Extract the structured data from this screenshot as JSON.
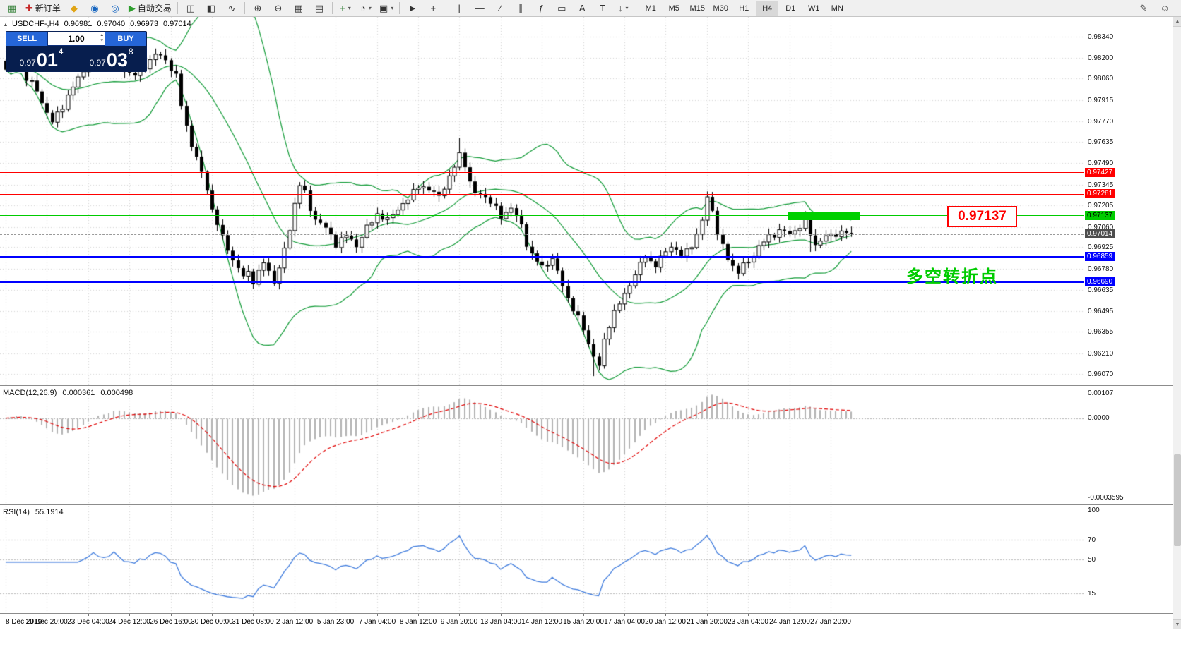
{
  "glyphs": {
    "collapse": "▴",
    "dropdown": "▾",
    "volume_up": "▴",
    "volume_down": "▾",
    "scroll_up": "▲",
    "scroll_down": "▼"
  },
  "toolbar": {
    "groups": [
      {
        "items": [
          {
            "name": "new-chart-icon",
            "glyph": "▦",
            "color": "#2e7d32"
          },
          {
            "name": "new-order-button",
            "label": "新订单",
            "icon": "✚",
            "icon_color": "#c62828"
          },
          {
            "name": "megaphone-icon",
            "glyph": "◆",
            "color": "#e0a415"
          },
          {
            "name": "market-icon",
            "glyph": "◉",
            "color": "#1565c0"
          },
          {
            "name": "signals-icon",
            "glyph": "◎",
            "color": "#1565c0"
          },
          {
            "name": "autotrading-button",
            "label": "自动交易",
            "icon": "▶",
            "icon_color": "#2e9e2e"
          }
        ]
      },
      {
        "items": [
          {
            "name": "bar-chart-icon",
            "glyph": "◫"
          },
          {
            "name": "candlestick-chart-icon",
            "glyph": "◧"
          },
          {
            "name": "line-chart-icon",
            "glyph": "∿"
          }
        ]
      },
      {
        "items": [
          {
            "name": "zoom-in-icon",
            "glyph": "⊕"
          },
          {
            "name": "zoom-out-icon",
            "glyph": "⊖"
          },
          {
            "name": "tile-windows-icon",
            "glyph": "▦"
          },
          {
            "name": "auto-arrange-icon",
            "glyph": "▤"
          }
        ]
      },
      {
        "items": [
          {
            "name": "indicators-icon",
            "glyph": "+",
            "color": "#2e7d32",
            "dropdown": true
          },
          {
            "name": "periods-icon",
            "glyph": "◔",
            "dropdown": true
          },
          {
            "name": "templates-icon",
            "glyph": "▣",
            "dropdown": true
          }
        ]
      },
      {
        "items": [
          {
            "name": "cursor-icon",
            "glyph": "►"
          },
          {
            "name": "crosshair-icon",
            "glyph": "+"
          }
        ]
      },
      {
        "items": [
          {
            "name": "vertical-line-icon",
            "glyph": "|"
          },
          {
            "name": "horizontal-line-icon",
            "glyph": "—"
          },
          {
            "name": "trendline-icon",
            "glyph": "∕"
          },
          {
            "name": "channel-icon",
            "glyph": "∥"
          },
          {
            "name": "fibonacci-icon",
            "glyph": "ƒ"
          },
          {
            "name": "shapes-icon",
            "glyph": "▭"
          },
          {
            "name": "text-icon",
            "glyph": "A"
          },
          {
            "name": "label-icon",
            "glyph": "T"
          },
          {
            "name": "arrows-icon",
            "glyph": "↓",
            "dropdown": true
          }
        ]
      }
    ],
    "timeframes": [
      "M1",
      "M5",
      "M15",
      "M30",
      "H1",
      "H4",
      "D1",
      "W1",
      "MN"
    ],
    "active_timeframe": "H4",
    "right_icons": [
      {
        "name": "pencil-icon",
        "glyph": "✎"
      },
      {
        "name": "smiley-icon",
        "glyph": "☺"
      }
    ]
  },
  "quote_header": {
    "symbol": "USDCHF-,H4",
    "open": "0.96981",
    "high": "0.97040",
    "low": "0.96973",
    "close": "0.97014"
  },
  "trade_panel": {
    "sell_label": "SELL",
    "buy_label": "BUY",
    "volume": "1.00",
    "sell_price_prefix": "0.97",
    "sell_price_big": "01",
    "sell_price_sup": "4",
    "buy_price_prefix": "0.97",
    "buy_price_big": "03",
    "buy_price_sup": "8"
  },
  "levels": [
    {
      "value": 0.97427,
      "label": "0.97427",
      "color": "#ff0000",
      "text_color": "#ffffff",
      "thickness": 1
    },
    {
      "value": 0.97281,
      "label": "0.97281",
      "color": "#ff0000",
      "text_color": "#ffffff",
      "thickness": 1
    },
    {
      "value": 0.97137,
      "label": "0.97137",
      "color": "#00cc00",
      "text_color": "#000000",
      "thickness": 1
    },
    {
      "value": 0.96859,
      "label": "0.96859",
      "color": "#0000ff",
      "text_color": "#ffffff",
      "thickness": 2
    },
    {
      "value": 0.9669,
      "label": "0.96690",
      "color": "#0000ff",
      "text_color": "#ffffff",
      "thickness": 2
    }
  ],
  "current_price": {
    "value": 0.97014,
    "label": "0.97014",
    "bg": "#4d4d4d",
    "text_color": "#ffffff"
  },
  "macd": {
    "title": "MACD(12,26,9)",
    "value_main": "0.000361",
    "value_signal": "0.000498",
    "axis_labels": [
      "0.00107",
      "0.0000",
      "-0.0003595"
    ],
    "histogram_color": "#b2b2b2",
    "signal_color": "#e00000"
  },
  "rsi": {
    "title": "RSI(14)",
    "value": "55.1914",
    "axis_labels": [
      {
        "value": 100,
        "label": "100"
      },
      {
        "value": 70,
        "label": "70"
      },
      {
        "value": 50,
        "label": "50"
      },
      {
        "value": 15,
        "label": "15"
      }
    ],
    "line_color": "#3e7bdd"
  },
  "annotations": {
    "highlight_bar": {
      "price": 0.97137,
      "from_index": 152,
      "to_index": 166,
      "color": "#00d000"
    },
    "price_callout": {
      "text": "0.97137",
      "color": "#ff0000"
    },
    "cn_label": {
      "text": "多空转折点",
      "color": "#00cc00"
    }
  },
  "chart_data": {
    "type": "candlestick",
    "symbol": "USDCHF",
    "timeframe": "H4",
    "n_candles": 165,
    "style": {
      "bull_fill": "#ffffff",
      "bear_fill": "#000000",
      "outline": "#000000",
      "grid_color": "#d2d2d2",
      "bollinger_color": "#0f9a35"
    },
    "price_axis": {
      "top_price": 0.98475,
      "bottom_price": 0.96,
      "ticks": [
        "0.98340",
        "0.98200",
        "0.98060",
        "0.97915",
        "0.97770",
        "0.97635",
        "0.97490",
        "0.97345",
        "0.97205",
        "0.97060",
        "0.96925",
        "0.96780",
        "0.96635",
        "0.96495",
        "0.96355",
        "0.96210",
        "0.96070"
      ]
    },
    "time_ticks": [
      {
        "index": 0,
        "label": "8 Dec 2019"
      },
      {
        "index": 8,
        "label": "19 Dec 20:00"
      },
      {
        "index": 16,
        "label": "23 Dec 04:00"
      },
      {
        "index": 24,
        "label": "24 Dec 12:00"
      },
      {
        "index": 32,
        "label": "26 Dec 16:00"
      },
      {
        "index": 40,
        "label": "30 Dec 00:00"
      },
      {
        "index": 48,
        "label": "31 Dec 08:00"
      },
      {
        "index": 56,
        "label": "2 Jan 12:00"
      },
      {
        "index": 64,
        "label": "5 Jan 23:00"
      },
      {
        "index": 72,
        "label": "7 Jan 04:00"
      },
      {
        "index": 80,
        "label": "8 Jan 12:00"
      },
      {
        "index": 88,
        "label": "9 Jan 20:00"
      },
      {
        "index": 96,
        "label": "13 Jan 04:00"
      },
      {
        "index": 104,
        "label": "14 Jan 12:00"
      },
      {
        "index": 112,
        "label": "15 Jan 20:00"
      },
      {
        "index": 120,
        "label": "17 Jan 04:00"
      },
      {
        "index": 128,
        "label": "20 Jan 12:00"
      },
      {
        "index": 136,
        "label": "21 Jan 20:00"
      },
      {
        "index": 144,
        "label": "23 Jan 04:00"
      },
      {
        "index": 152,
        "label": "24 Jan 12:00"
      },
      {
        "index": 160,
        "label": "27 Jan 20:00"
      }
    ],
    "close_waypoints": [
      [
        0,
        0.9812
      ],
      [
        2,
        0.982
      ],
      [
        4,
        0.9806
      ],
      [
        6,
        0.9798
      ],
      [
        8,
        0.9783
      ],
      [
        9,
        0.9776
      ],
      [
        11,
        0.9788
      ],
      [
        13,
        0.98
      ],
      [
        15,
        0.9812
      ],
      [
        17,
        0.982
      ],
      [
        19,
        0.9815
      ],
      [
        21,
        0.9822
      ],
      [
        23,
        0.9812
      ],
      [
        25,
        0.9808
      ],
      [
        27,
        0.9815
      ],
      [
        29,
        0.9822
      ],
      [
        31,
        0.9819
      ],
      [
        33,
        0.9807
      ],
      [
        34,
        0.9788
      ],
      [
        35,
        0.9774
      ],
      [
        36,
        0.9762
      ],
      [
        37,
        0.9752
      ],
      [
        38,
        0.9742
      ],
      [
        39,
        0.9732
      ],
      [
        40,
        0.9718
      ],
      [
        41,
        0.9708
      ],
      [
        42,
        0.9698
      ],
      [
        43,
        0.9692
      ],
      [
        44,
        0.9684
      ],
      [
        45,
        0.9678
      ],
      [
        46,
        0.9672
      ],
      [
        47,
        0.9676
      ],
      [
        48,
        0.967
      ],
      [
        49,
        0.9675
      ],
      [
        50,
        0.9682
      ],
      [
        51,
        0.9676
      ],
      [
        52,
        0.967
      ],
      [
        53,
        0.9678
      ],
      [
        54,
        0.969
      ],
      [
        55,
        0.9705
      ],
      [
        56,
        0.9722
      ],
      [
        57,
        0.9735
      ],
      [
        58,
        0.9728
      ],
      [
        59,
        0.9718
      ],
      [
        60,
        0.9712
      ],
      [
        62,
        0.9705
      ],
      [
        64,
        0.9695
      ],
      [
        66,
        0.97
      ],
      [
        68,
        0.9694
      ],
      [
        70,
        0.9705
      ],
      [
        72,
        0.9715
      ],
      [
        74,
        0.971
      ],
      [
        76,
        0.9719
      ],
      [
        78,
        0.9724
      ],
      [
        80,
        0.9735
      ],
      [
        82,
        0.973
      ],
      [
        84,
        0.9728
      ],
      [
        86,
        0.9738
      ],
      [
        88,
        0.9756
      ],
      [
        89,
        0.9748
      ],
      [
        90,
        0.9735
      ],
      [
        91,
        0.9728
      ],
      [
        92,
        0.973
      ],
      [
        94,
        0.9722
      ],
      [
        96,
        0.9714
      ],
      [
        98,
        0.9718
      ],
      [
        100,
        0.9708
      ],
      [
        101,
        0.9695
      ],
      [
        102,
        0.9686
      ],
      [
        104,
        0.968
      ],
      [
        106,
        0.9684
      ],
      [
        107,
        0.9675
      ],
      [
        108,
        0.9668
      ],
      [
        109,
        0.9658
      ],
      [
        110,
        0.965
      ],
      [
        111,
        0.9644
      ],
      [
        112,
        0.9638
      ],
      [
        113,
        0.9628
      ],
      [
        114,
        0.9618
      ],
      [
        115,
        0.9612
      ],
      [
        116,
        0.963
      ],
      [
        117,
        0.9641
      ],
      [
        118,
        0.9648
      ],
      [
        119,
        0.9654
      ],
      [
        120,
        0.9661
      ],
      [
        121,
        0.9668
      ],
      [
        122,
        0.9674
      ],
      [
        123,
        0.968
      ],
      [
        124,
        0.9687
      ],
      [
        125,
        0.9683
      ],
      [
        126,
        0.968
      ],
      [
        127,
        0.9684
      ],
      [
        128,
        0.969
      ],
      [
        129,
        0.9694
      ],
      [
        130,
        0.969
      ],
      [
        131,
        0.9686
      ],
      [
        132,
        0.969
      ],
      [
        133,
        0.9695
      ],
      [
        134,
        0.97
      ],
      [
        135,
        0.971
      ],
      [
        136,
        0.9726
      ],
      [
        137,
        0.9718
      ],
      [
        138,
        0.9702
      ],
      [
        139,
        0.9692
      ],
      [
        140,
        0.9685
      ],
      [
        141,
        0.968
      ],
      [
        142,
        0.9676
      ],
      [
        143,
        0.968
      ],
      [
        144,
        0.9682
      ],
      [
        145,
        0.9688
      ],
      [
        146,
        0.9693
      ],
      [
        148,
        0.9699
      ],
      [
        150,
        0.9704
      ],
      [
        152,
        0.9701
      ],
      [
        154,
        0.9707
      ],
      [
        155,
        0.971
      ],
      [
        156,
        0.9701
      ],
      [
        157,
        0.9694
      ],
      [
        158,
        0.9698
      ],
      [
        160,
        0.97
      ],
      [
        162,
        0.9703
      ],
      [
        164,
        0.97014
      ]
    ],
    "wick_extensions": [
      {
        "index": 88,
        "high_extra": 0.0006
      },
      {
        "index": 114,
        "low_extra": 0.0009
      },
      {
        "index": 156,
        "low_extra": 0.0008
      }
    ],
    "indicators": {
      "bollinger": {
        "period": 20,
        "deviation": 2
      },
      "macd": {
        "fast": 12,
        "slow": 26,
        "signal": 9
      },
      "rsi": {
        "period": 14
      }
    }
  }
}
